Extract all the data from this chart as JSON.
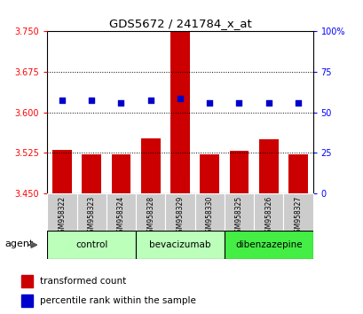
{
  "title": "GDS5672 / 241784_x_at",
  "samples": [
    "GSM958322",
    "GSM958323",
    "GSM958324",
    "GSM958328",
    "GSM958329",
    "GSM958330",
    "GSM958325",
    "GSM958326",
    "GSM958327"
  ],
  "bar_values": [
    3.53,
    3.522,
    3.522,
    3.552,
    3.75,
    3.522,
    3.528,
    3.55,
    3.522
  ],
  "dot_values": [
    3.622,
    3.622,
    3.618,
    3.622,
    3.625,
    3.618,
    3.618,
    3.618,
    3.618
  ],
  "ylim_left": [
    3.45,
    3.75
  ],
  "ylim_right": [
    0,
    100
  ],
  "yticks_left": [
    3.45,
    3.525,
    3.6,
    3.675,
    3.75
  ],
  "yticks_right": [
    0,
    25,
    50,
    75,
    100
  ],
  "group_configs": [
    {
      "label": "control",
      "indices": [
        0,
        1,
        2
      ],
      "color": "#bbffbb"
    },
    {
      "label": "bevacizumab",
      "indices": [
        3,
        4,
        5
      ],
      "color": "#bbffbb"
    },
    {
      "label": "dibenzazepine",
      "indices": [
        6,
        7,
        8
      ],
      "color": "#44ee44"
    }
  ],
  "bar_color": "#cc0000",
  "dot_color": "#0000cc",
  "bar_width": 0.65,
  "bar_bottom": 3.45,
  "xlabel_agent": "agent",
  "legend_bar": "transformed count",
  "legend_dot": "percentile rank within the sample"
}
